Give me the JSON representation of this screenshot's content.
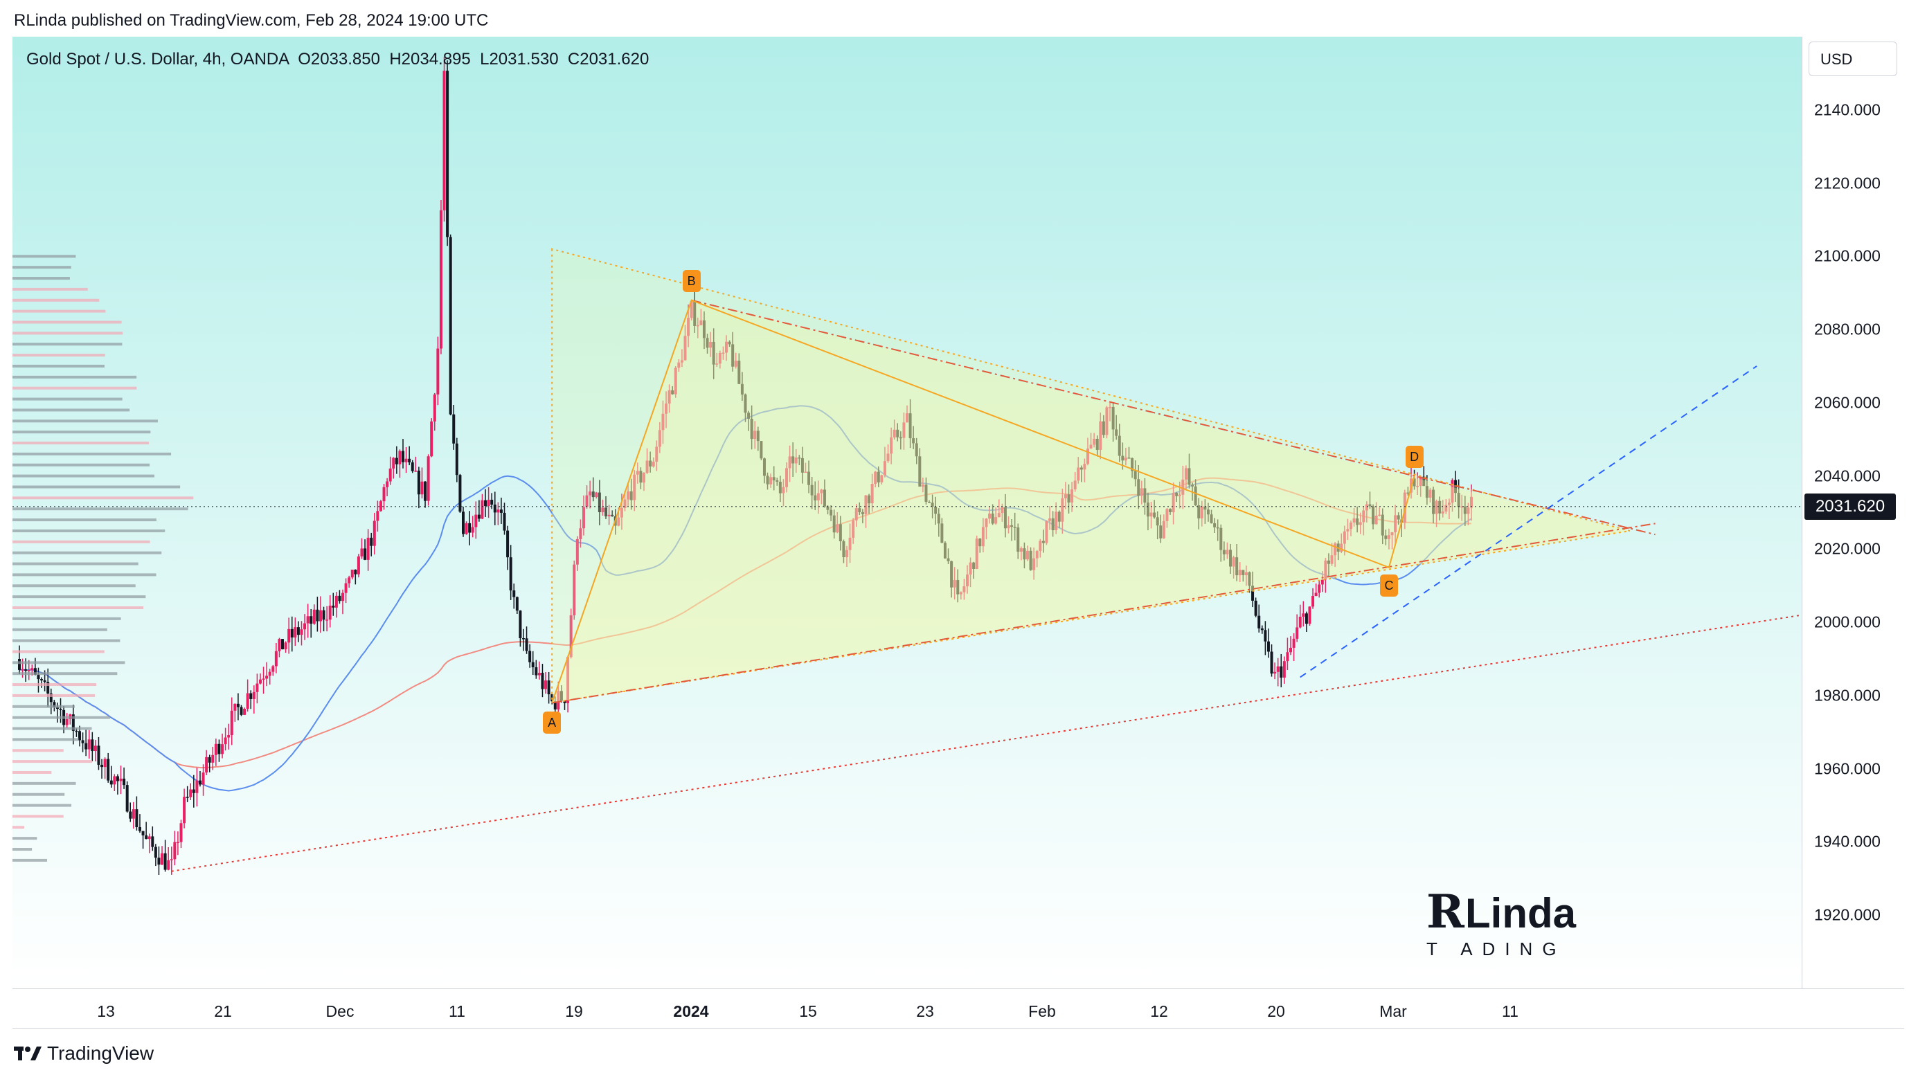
{
  "header": {
    "published_by": "RLinda published on TradingView.com, Feb 28, 2024 19:00 UTC"
  },
  "legend": {
    "symbol": "Gold Spot / U.S. Dollar, 4h, OANDA",
    "open": "O2033.850",
    "high": "H2034.895",
    "low": "L2031.530",
    "close": "C2031.620"
  },
  "currency_button": "USD",
  "last_price": "2031.620",
  "footer": {
    "brand": "TradingView"
  },
  "watermark": {
    "text": "RLinda TRADING"
  },
  "pattern_labels": [
    "A",
    "B",
    "C",
    "D"
  ],
  "chart_data": {
    "type": "candlestick",
    "symbol": "XAUUSD",
    "interval": "4h",
    "y_ticks": [
      "1920.000",
      "1940.000",
      "1960.000",
      "1980.000",
      "2000.000",
      "2020.000",
      "2040.000",
      "2060.000",
      "2080.000",
      "2100.000",
      "2120.000",
      "2140.000"
    ],
    "x_ticks": [
      {
        "label": "13",
        "bold": false
      },
      {
        "label": "21",
        "bold": false
      },
      {
        "label": "Dec",
        "bold": false
      },
      {
        "label": "11",
        "bold": false
      },
      {
        "label": "19",
        "bold": false
      },
      {
        "label": "2024",
        "bold": true
      },
      {
        "label": "15",
        "bold": false
      },
      {
        "label": "23",
        "bold": false
      },
      {
        "label": "Feb",
        "bold": false
      },
      {
        "label": "12",
        "bold": false
      },
      {
        "label": "20",
        "bold": false
      },
      {
        "label": "Mar",
        "bold": false
      },
      {
        "label": "11",
        "bold": false
      }
    ],
    "ylim": [
      1900,
      2160
    ],
    "last_close": 2031.62,
    "price_path": [
      [
        0,
        1990
      ],
      [
        5,
        1968
      ],
      [
        8,
        1955
      ],
      [
        10,
        1940
      ],
      [
        12,
        1933
      ],
      [
        13,
        1950
      ],
      [
        15,
        1962
      ],
      [
        17,
        1975
      ],
      [
        19,
        1985
      ],
      [
        21,
        1995
      ],
      [
        23,
        2000
      ],
      [
        25,
        2005
      ],
      [
        26,
        2010
      ],
      [
        28,
        2025
      ],
      [
        29,
        2040
      ],
      [
        30,
        2045
      ],
      [
        31,
        2040
      ],
      [
        32,
        2035
      ],
      [
        33,
        2075
      ],
      [
        33.5,
        2150
      ],
      [
        34,
        2055
      ],
      [
        35,
        2025
      ],
      [
        36,
        2030
      ],
      [
        37,
        2035
      ],
      [
        38,
        2028
      ],
      [
        39,
        2005
      ],
      [
        40,
        1990
      ],
      [
        41,
        1985
      ],
      [
        42,
        1978
      ],
      [
        43,
        1980
      ],
      [
        44,
        2025
      ],
      [
        45,
        2035
      ],
      [
        46,
        2030
      ],
      [
        47,
        2025
      ],
      [
        48,
        2035
      ],
      [
        49,
        2040
      ],
      [
        50,
        2045
      ],
      [
        51,
        2060
      ],
      [
        52,
        2070
      ],
      [
        53,
        2085
      ],
      [
        54,
        2080
      ],
      [
        55,
        2070
      ],
      [
        56,
        2075
      ],
      [
        57,
        2062
      ],
      [
        58,
        2050
      ],
      [
        59,
        2040
      ],
      [
        60,
        2035
      ],
      [
        61,
        2045
      ],
      [
        62,
        2040
      ],
      [
        63,
        2035
      ],
      [
        64,
        2030
      ],
      [
        65,
        2020
      ],
      [
        66,
        2030
      ],
      [
        67,
        2035
      ],
      [
        68,
        2042
      ],
      [
        69,
        2050
      ],
      [
        70,
        2055
      ],
      [
        71,
        2040
      ],
      [
        72,
        2030
      ],
      [
        73,
        2020
      ],
      [
        74,
        2005
      ],
      [
        75,
        2015
      ],
      [
        76,
        2025
      ],
      [
        77,
        2030
      ],
      [
        78,
        2028
      ],
      [
        79,
        2020
      ],
      [
        80,
        2015
      ],
      [
        81,
        2025
      ],
      [
        82,
        2030
      ],
      [
        83,
        2035
      ],
      [
        84,
        2045
      ],
      [
        85,
        2050
      ],
      [
        86,
        2058
      ],
      [
        87,
        2045
      ],
      [
        88,
        2040
      ],
      [
        89,
        2030
      ],
      [
        90,
        2025
      ],
      [
        91,
        2035
      ],
      [
        92,
        2040
      ],
      [
        93,
        2030
      ],
      [
        94,
        2028
      ],
      [
        95,
        2020
      ],
      [
        96,
        2015
      ],
      [
        97,
        2010
      ],
      [
        98,
        1995
      ],
      [
        99,
        1985
      ],
      [
        100,
        1990
      ],
      [
        101,
        2000
      ],
      [
        102,
        2005
      ],
      [
        103,
        2015
      ],
      [
        104,
        2020
      ],
      [
        105,
        2025
      ],
      [
        106,
        2030
      ],
      [
        107,
        2028
      ],
      [
        108,
        2025
      ],
      [
        109,
        2030
      ],
      [
        110,
        2040
      ],
      [
        111,
        2035
      ],
      [
        112,
        2030
      ],
      [
        113,
        2036
      ],
      [
        114,
        2032
      ],
      [
        114.5,
        2031.62
      ]
    ],
    "pattern_points": {
      "A": {
        "t": 42,
        "price": 1978
      },
      "B": {
        "t": 53,
        "price": 2088
      },
      "C": {
        "t": 108,
        "price": 2015
      },
      "D": {
        "t": 110,
        "price": 2040
      }
    }
  }
}
